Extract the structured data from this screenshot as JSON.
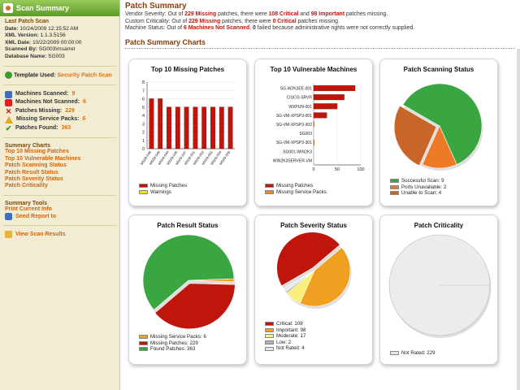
{
  "sidebar": {
    "header": "Scan Summary",
    "info_title": "Last Patch Scan",
    "date_label": "Date:",
    "date": "10/24/2009 12:15:52 AM",
    "xml_version_label": "XML Version:",
    "xml_version": "1.1.3.5156",
    "xml_date_label": "XML Date:",
    "xml_date": "10/22/2009 00:00:00",
    "scanned_by_label": "Scanned By:",
    "scanned_by": "SG003\\msarrel",
    "database_label": "Database Name:",
    "database": "SG003",
    "template_label": "Template Used:",
    "template_value": "Security Patch Scan",
    "stats": [
      {
        "label": "Machines Scanned:",
        "value": "9",
        "icon": "computer-icon"
      },
      {
        "label": "Machines Not Scanned:",
        "value": "6",
        "icon": "computer-x-icon"
      },
      {
        "label": "Patches Missing:",
        "value": "229",
        "icon": "x-icon"
      },
      {
        "label": "Missing Service Packs:",
        "value": "6",
        "icon": "warning-icon"
      },
      {
        "label": "Patches Found:",
        "value": "363",
        "icon": "check-icon"
      }
    ],
    "charts_title": "Summary Charts",
    "chart_links": [
      "Top 10 Missing Patches",
      "Top 10 Vulnerable Machines",
      "Patch Scanning Status",
      "Patch Result Status",
      "Patch Severity Status",
      "Patch Criticality"
    ],
    "tools_title": "Summary Tools",
    "print_link": "Print Current Info",
    "send_link": "Send Report to",
    "view_link": "View Scan Results"
  },
  "main": {
    "title": "Patch Summary",
    "line1": {
      "a": "Vendor Severity: Out of ",
      "b": "229 Missing",
      "c": " patches, there were ",
      "d": "108 Critical",
      "e": " and ",
      "f": "98 Important",
      "g": " patches missing."
    },
    "line2": {
      "a": "Custom Criticality: Out of ",
      "b": "229 Missing",
      "c": " patches, there were ",
      "d": "0 Critical",
      "e": " patches missing."
    },
    "line3": {
      "a": "Machine Status: Out of ",
      "b": "6 Machines Not Scanned",
      "c": ", ",
      "d": "0",
      "e": " failed because administrative rights were not correctly supplied."
    },
    "charts_heading": "Patch Summary Charts"
  },
  "colors": {
    "critical": "#c0150b",
    "orange": "#e8892a",
    "green": "#3aa642",
    "accent": "#8a3c08"
  },
  "chart_data": [
    {
      "type": "bar",
      "title": "Top 10 Missing Patches",
      "categories": [
        "MS09-048",
        "MS09-046",
        "MS09-044",
        "MS09-045",
        "MS09-047",
        "MS09-051",
        "MS09-053",
        "MS09-052",
        "MS09-054",
        "MS09-056"
      ],
      "series": [
        {
          "name": "Missing Patches",
          "values": [
            6,
            6,
            5,
            5,
            5,
            5,
            5,
            5,
            5,
            5
          ]
        },
        {
          "name": "Warnings",
          "values": [
            0,
            0,
            0,
            0,
            0,
            0,
            0,
            0,
            0,
            0
          ]
        }
      ],
      "yticks": [
        "0",
        "1",
        "2",
        "3",
        "4",
        "5",
        "6",
        "7",
        "8"
      ],
      "ylim": [
        0,
        8
      ]
    },
    {
      "type": "bar",
      "orientation": "horizontal",
      "title": "Top 10 Vulnerable Machines",
      "categories": [
        "SG-W2K3EE-001",
        "CISCO-SRVR",
        "WXPUN-001",
        "SG-VM-XPSP3-001",
        "SG-VM-XPSP3-302",
        "SG003",
        "SG-VM-XPSP3-301",
        "SG001-WIN2K3",
        "WIN2K3SERVER-VM"
      ],
      "series": [
        {
          "name": "Missing Patches",
          "values": [
            88,
            65,
            50,
            28,
            0,
            0,
            0,
            0,
            0
          ]
        },
        {
          "name": "Missing Service Packs",
          "values": [
            0,
            0,
            0,
            0,
            1,
            0,
            1,
            0,
            0
          ]
        }
      ],
      "xticks": [
        "0",
        "50",
        "100"
      ],
      "xlim": [
        0,
        100
      ]
    },
    {
      "type": "pie",
      "title": "Patch Scanning Status",
      "labels": [
        "Successful Scan",
        "Ports Unavailable",
        "Unable to Scan"
      ],
      "values": [
        9,
        2,
        4
      ],
      "legend": [
        "Successful Scan: 9",
        "Ports Unavailable: 2",
        "Unable to Scan: 4"
      ]
    },
    {
      "type": "pie",
      "title": "Patch Result Status",
      "labels": [
        "Missing Service Packs",
        "Missing Patches",
        "Found Patches"
      ],
      "values": [
        6,
        229,
        363
      ],
      "legend": [
        "Missing Service Packs: 6",
        "Missing Patches: 229",
        "Found Patches: 363"
      ]
    },
    {
      "type": "pie",
      "title": "Patch Severity Status",
      "labels": [
        "Critical",
        "Important",
        "Moderate",
        "Low",
        "Not Rated"
      ],
      "values": [
        108,
        98,
        17,
        2,
        4
      ],
      "legend": [
        "Critical: 108",
        "Important: 98",
        "Moderate: 17",
        "Low: 2",
        "Not Rated: 4"
      ]
    },
    {
      "type": "pie",
      "title": "Patch Criticality",
      "labels": [
        "Not Rated"
      ],
      "values": [
        229
      ],
      "legend": [
        "Not Rated: 229"
      ]
    }
  ]
}
